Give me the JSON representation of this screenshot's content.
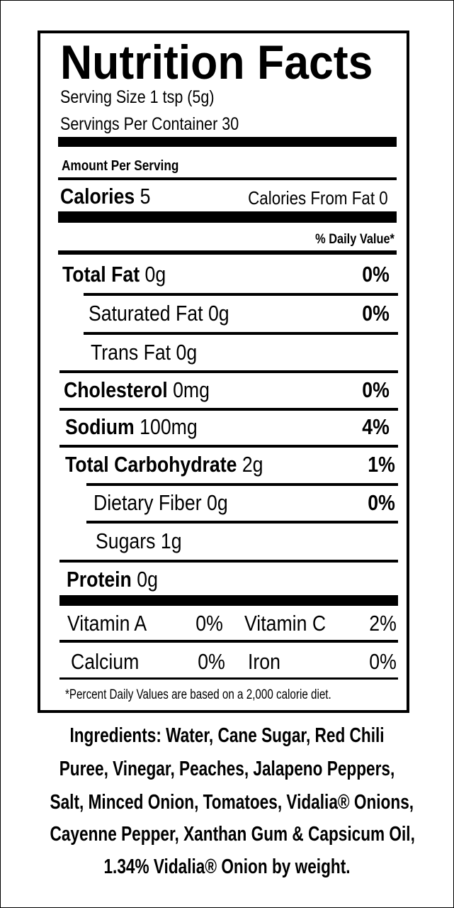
{
  "title": "Nutrition Facts",
  "serving_size": "Serving Size 1 tsp (5g)",
  "servings_per_container": "Servings Per Container 30",
  "amount_per_serving": "Amount Per Serving",
  "calories": {
    "label": "Calories",
    "amount": "5",
    "from_fat": "Calories From Fat 0"
  },
  "daily_value_header": "% Daily Value*",
  "nutrients": [
    {
      "label": "Total Fat",
      "amount": "0g",
      "dv": "0%"
    },
    {
      "label": "Saturated Fat",
      "amount": "0g",
      "dv": "0%"
    },
    {
      "label": "Trans Fat",
      "amount": "0g"
    },
    {
      "label": "Cholesterol",
      "amount": "0mg",
      "dv": "0%"
    },
    {
      "label": "Sodium",
      "amount": "100mg",
      "dv": "4%"
    },
    {
      "label": "Total Carbohydrate",
      "amount": "2g",
      "dv": "1%"
    },
    {
      "label": "Dietary Fiber",
      "amount": "0g",
      "dv": "0%"
    },
    {
      "label": "Sugars",
      "amount": "1g"
    },
    {
      "label": "Protein",
      "amount": "0g"
    }
  ],
  "vitamins": [
    [
      {
        "label": "Vitamin A",
        "dv": "0%"
      },
      {
        "label": "Vitamin C",
        "dv": "2%"
      }
    ],
    [
      {
        "label": "Calcium",
        "dv": "0%"
      },
      {
        "label": "Iron",
        "dv": "0%"
      }
    ]
  ],
  "footnote": "*Percent Daily Values are based on a 2,000 calorie diet.",
  "ingredients": [
    "Ingredients: Water, Cane Sugar, Red Chili",
    "Puree, Vinegar, Peaches, Jalapeno Peppers,",
    "Salt, Minced Onion, Tomatoes, Vidalia® Onions,",
    "Cayenne Pepper, Xanthan Gum & Capsicum Oil,",
    "1.34% Vidalia® Onion by weight."
  ]
}
